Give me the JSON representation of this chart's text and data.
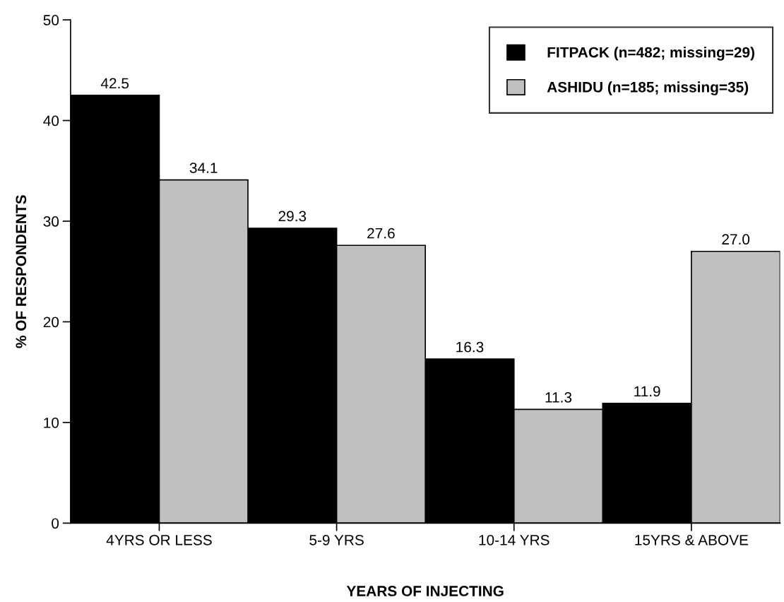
{
  "chart_data": {
    "type": "bar",
    "xlabel": "YEARS OF INJECTING",
    "ylabel": "% OF RESPONDENTS",
    "categories": [
      "4YRS OR LESS",
      "5-9 YRS",
      "10-14 YRS",
      "15YRS & ABOVE"
    ],
    "series": [
      {
        "name": "FITPACK (n=482; missing=29)",
        "color": "#000000",
        "values": [
          42.5,
          29.3,
          16.3,
          11.9
        ],
        "value_labels": [
          "42.5",
          "29.3",
          "16.3",
          "11.9"
        ]
      },
      {
        "name": "ASHIDU (n=185; missing=35)",
        "color": "#c0c0c0",
        "values": [
          34.1,
          27.6,
          11.3,
          27.0
        ],
        "value_labels": [
          "34.1",
          "27.6",
          "11.3",
          "27.0"
        ]
      }
    ],
    "ylim": [
      0,
      50
    ],
    "yticks": [
      0,
      10,
      20,
      30,
      40,
      50
    ],
    "grid": false,
    "legend": "top right"
  }
}
